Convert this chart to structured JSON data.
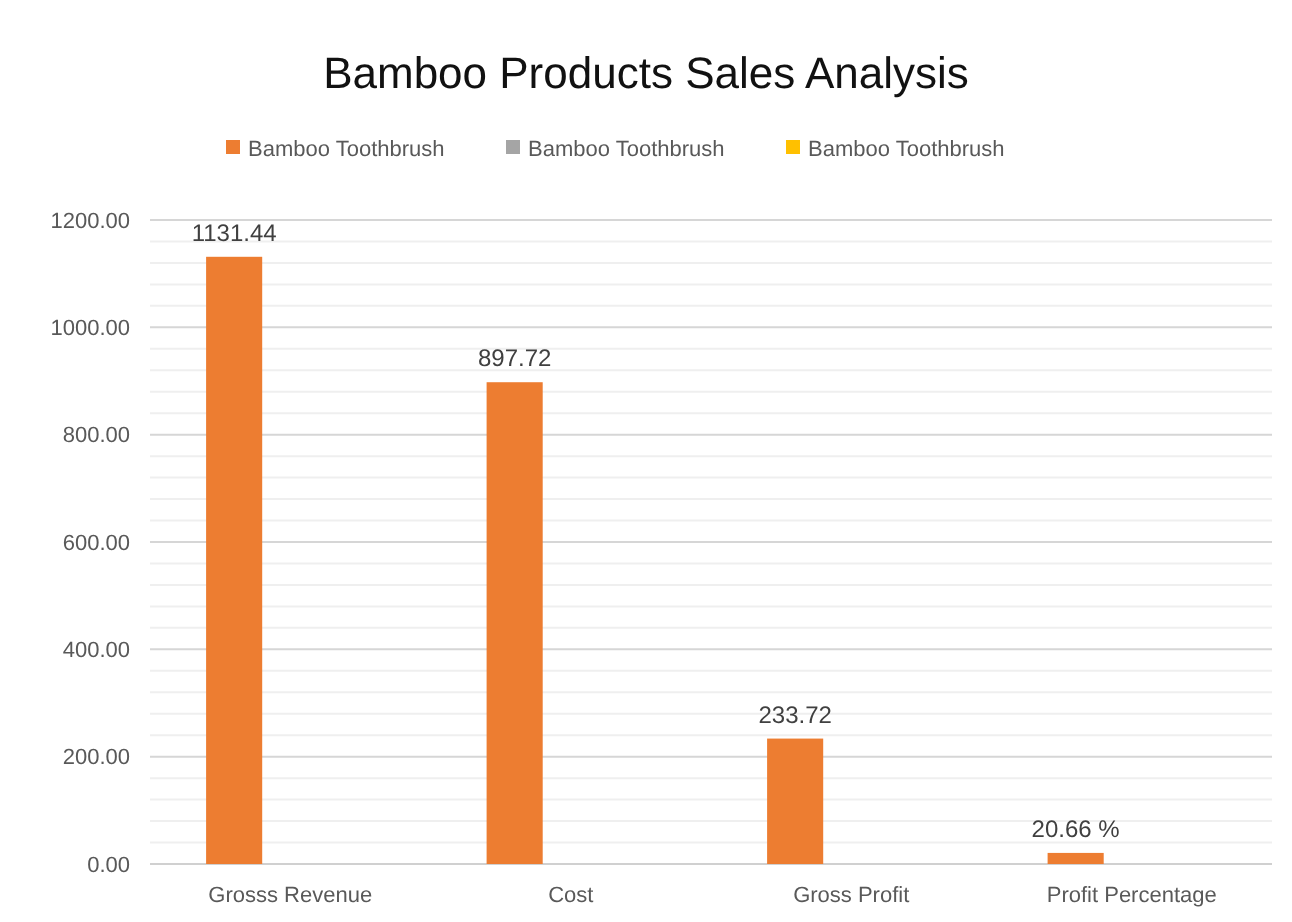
{
  "chart_data": {
    "type": "bar",
    "title": "Bamboo Products Sales Analysis",
    "categories": [
      "Grosss Revenue",
      "Cost",
      "Gross Profit",
      "Profit Percentage"
    ],
    "series": [
      {
        "name": "Bamboo Toothbrush",
        "color": "#ed7d31",
        "values": [
          1131.44,
          897.72,
          233.72,
          20.66
        ],
        "value_labels": [
          "1131.44",
          "897.72",
          "233.72",
          "20.66 %"
        ]
      },
      {
        "name": "Bamboo Toothbrush",
        "color": "#a5a5a5",
        "values": [
          null,
          null,
          null,
          null
        ]
      },
      {
        "name": "Bamboo Toothbrush",
        "color": "#ffc000",
        "values": [
          null,
          null,
          null,
          null
        ]
      }
    ],
    "ylim": [
      0,
      1200
    ],
    "yticks": [
      {
        "value": 0,
        "label": "0.00"
      },
      {
        "value": 40,
        "label": null
      },
      {
        "value": 80,
        "label": null
      },
      {
        "value": 120,
        "label": null
      },
      {
        "value": 160,
        "label": null
      },
      {
        "value": 200,
        "label": "200.00"
      },
      {
        "value": 240,
        "label": null
      },
      {
        "value": 280,
        "label": null
      },
      {
        "value": 320,
        "label": null
      },
      {
        "value": 360,
        "label": null
      },
      {
        "value": 400,
        "label": "400.00"
      },
      {
        "value": 440,
        "label": null
      },
      {
        "value": 480,
        "label": null
      },
      {
        "value": 520,
        "label": null
      },
      {
        "value": 560,
        "label": null
      },
      {
        "value": 600,
        "label": "600.00"
      },
      {
        "value": 640,
        "label": null
      },
      {
        "value": 680,
        "label": null
      },
      {
        "value": 720,
        "label": null
      },
      {
        "value": 760,
        "label": null
      },
      {
        "value": 800,
        "label": "800.00"
      },
      {
        "value": 840,
        "label": null
      },
      {
        "value": 880,
        "label": null
      },
      {
        "value": 920,
        "label": null
      },
      {
        "value": 960,
        "label": null
      },
      {
        "value": 1000,
        "label": "1000.00"
      },
      {
        "value": 1040,
        "label": null
      },
      {
        "value": 1080,
        "label": null
      },
      {
        "value": 1120,
        "label": null
      },
      {
        "value": 1160,
        "label": null
      },
      {
        "value": 1200,
        "label": "1200.00"
      }
    ],
    "grid": true,
    "legend": "top"
  }
}
